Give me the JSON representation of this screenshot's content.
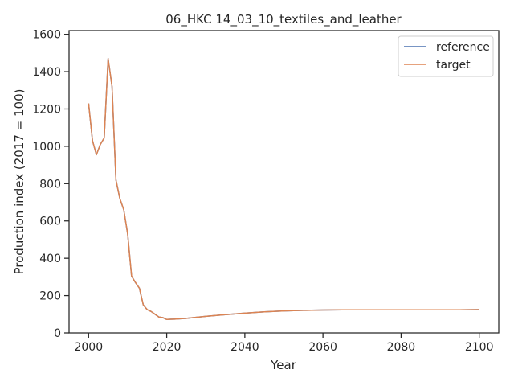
{
  "chart_data": {
    "type": "line",
    "title": "06_HKC 14_03_10_textiles_and_leather",
    "xlabel": "Year",
    "ylabel": "Production index (2017 = 100)",
    "xlim": [
      1995,
      2105
    ],
    "ylim": [
      0,
      1620
    ],
    "xticks": [
      2000,
      2020,
      2040,
      2060,
      2080,
      2100
    ],
    "yticks": [
      0,
      200,
      400,
      600,
      800,
      1000,
      1200,
      1400,
      1600
    ],
    "grid": false,
    "legend_position": "top-right",
    "series": [
      {
        "name": "reference",
        "color": "#4c72b0",
        "x": [
          2000,
          2001,
          2002,
          2003,
          2004,
          2005,
          2006,
          2007,
          2008,
          2009,
          2010,
          2011,
          2012,
          2013,
          2014,
          2015,
          2016,
          2017,
          2018,
          2019,
          2020,
          2021,
          2022,
          2025,
          2030,
          2035,
          2040,
          2045,
          2050,
          2055,
          2060,
          2065,
          2070,
          2075,
          2080,
          2085,
          2090,
          2095,
          2100
        ],
        "y": [
          1230,
          1030,
          955,
          1010,
          1045,
          1470,
          1320,
          820,
          720,
          660,
          530,
          305,
          270,
          240,
          150,
          125,
          115,
          100,
          85,
          82,
          72,
          73,
          74,
          78,
          89,
          98,
          106,
          113,
          118,
          121,
          123,
          124,
          124,
          124,
          124,
          124,
          124,
          124,
          125
        ]
      },
      {
        "name": "target",
        "color": "#dd8452",
        "x": [
          2000,
          2001,
          2002,
          2003,
          2004,
          2005,
          2006,
          2007,
          2008,
          2009,
          2010,
          2011,
          2012,
          2013,
          2014,
          2015,
          2016,
          2017,
          2018,
          2019,
          2020,
          2021,
          2022,
          2025,
          2030,
          2035,
          2040,
          2045,
          2050,
          2055,
          2060,
          2065,
          2070,
          2075,
          2080,
          2085,
          2090,
          2095,
          2100
        ],
        "y": [
          1230,
          1030,
          955,
          1010,
          1045,
          1470,
          1320,
          820,
          720,
          660,
          530,
          305,
          270,
          240,
          150,
          125,
          115,
          100,
          85,
          82,
          72,
          73,
          74,
          78,
          89,
          98,
          106,
          113,
          118,
          121,
          123,
          124,
          124,
          124,
          124,
          124,
          124,
          124,
          125
        ]
      }
    ]
  }
}
